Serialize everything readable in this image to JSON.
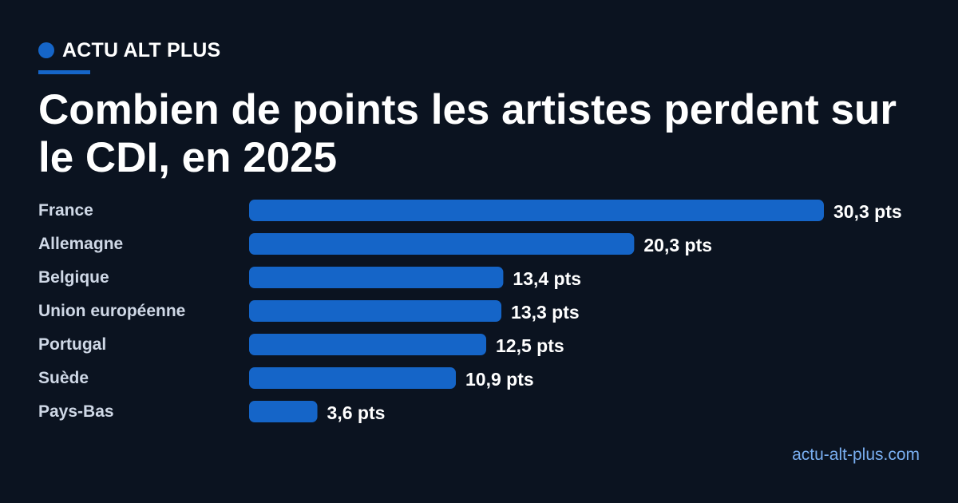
{
  "header": {
    "brand": "ACTU ALT PLUS",
    "title": "Combien de points les artistes perdent sur le CDI, en 2025"
  },
  "footer": {
    "source": "actu-alt-plus.com"
  },
  "colors": {
    "background": "#0b1320",
    "bar": "#1565c8",
    "accent": "#1565c8",
    "source_link": "#79aef0"
  },
  "chart_data": {
    "type": "bar",
    "orientation": "horizontal",
    "title": "Combien de points les artistes perdent sur le CDI, en 2025",
    "categories": [
      "France",
      "Allemagne",
      "Belgique",
      "Union européenne",
      "Portugal",
      "Suède",
      "Pays-Bas"
    ],
    "values": [
      30.3,
      20.3,
      13.4,
      13.3,
      12.5,
      10.9,
      3.6
    ],
    "value_labels": [
      "30,3 pts",
      "20,3 pts",
      "13,4 pts",
      "13,3 pts",
      "12,5 pts",
      "10,9 pts",
      "3,6 pts"
    ],
    "unit": "pts",
    "grid": false,
    "legend": "none"
  }
}
